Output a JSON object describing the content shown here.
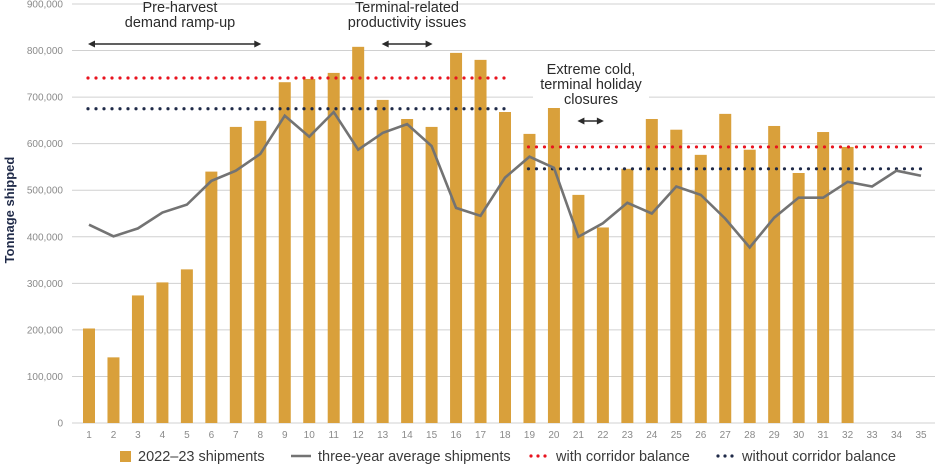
{
  "chart_data": {
    "type": "bar",
    "title": "",
    "xlabel": "",
    "ylabel": "Tonnage shipped",
    "ylim": [
      0,
      900000
    ],
    "yticks": [
      0,
      100000,
      200000,
      300000,
      400000,
      500000,
      600000,
      700000,
      800000,
      900000
    ],
    "ytick_labels": [
      "0",
      "100,000",
      "200,000",
      "300,000",
      "400,000",
      "500,000",
      "600,000",
      "700,000",
      "800,000",
      "900,000"
    ],
    "categories": [
      "1",
      "2",
      "3",
      "4",
      "5",
      "6",
      "7",
      "8",
      "9",
      "10",
      "11",
      "12",
      "13",
      "14",
      "15",
      "16",
      "17",
      "18",
      "19",
      "20",
      "21",
      "22",
      "23",
      "24",
      "25",
      "26",
      "27",
      "28",
      "29",
      "30",
      "31",
      "32",
      "33",
      "34",
      "35"
    ],
    "grid": "horizontal",
    "legend_position": "bottom",
    "series": [
      {
        "name": "2022–23 shipments",
        "type": "bar",
        "color": "#d9a03b",
        "values": [
          203000,
          141000,
          274000,
          302000,
          330000,
          540000,
          636000,
          649000,
          732000,
          739000,
          752000,
          808000,
          694000,
          653000,
          636000,
          795000,
          780000,
          668000,
          621000,
          681000,
          490000,
          420000,
          546000,
          653000,
          630000,
          576000,
          664000,
          587000,
          638000,
          537000,
          625000,
          593000,
          null,
          null,
          null
        ]
      },
      {
        "name": "three-year average shipments",
        "type": "line",
        "color": "#737373",
        "values": [
          426000,
          401000,
          418000,
          452000,
          469000,
          520000,
          542000,
          578000,
          660000,
          615000,
          668000,
          587000,
          623000,
          642000,
          595000,
          462000,
          445000,
          527000,
          572000,
          548000,
          400000,
          429000,
          473000,
          450000,
          508000,
          490000,
          439000,
          377000,
          441000,
          484000,
          484000,
          518000,
          508000,
          542000,
          531000
        ]
      },
      {
        "name": "with corridor balance",
        "type": "dotted-step",
        "color": "#e8141f",
        "segments": [
          {
            "from": 1,
            "to": 18,
            "value": 741000
          },
          {
            "from": 19,
            "to": 35,
            "value": 593000
          }
        ]
      },
      {
        "name": "without corridor balance",
        "type": "dotted-step",
        "color": "#1f2a48",
        "segments": [
          {
            "from": 1,
            "to": 18,
            "value": 675000
          },
          {
            "from": 19,
            "to": 35,
            "value": 546000
          }
        ]
      }
    ],
    "annotations": [
      {
        "lines": [
          "Pre-harvest",
          "demand ramp-up"
        ],
        "arrow_from": 1,
        "arrow_to": 8
      },
      {
        "lines": [
          "Terminal-related",
          "productivity issues"
        ],
        "arrow_from": 13,
        "arrow_to": 15
      },
      {
        "lines": [
          "Extreme cold,",
          "terminal holiday",
          "closures"
        ],
        "arrow_from": 21,
        "arrow_to": 22
      }
    ]
  }
}
